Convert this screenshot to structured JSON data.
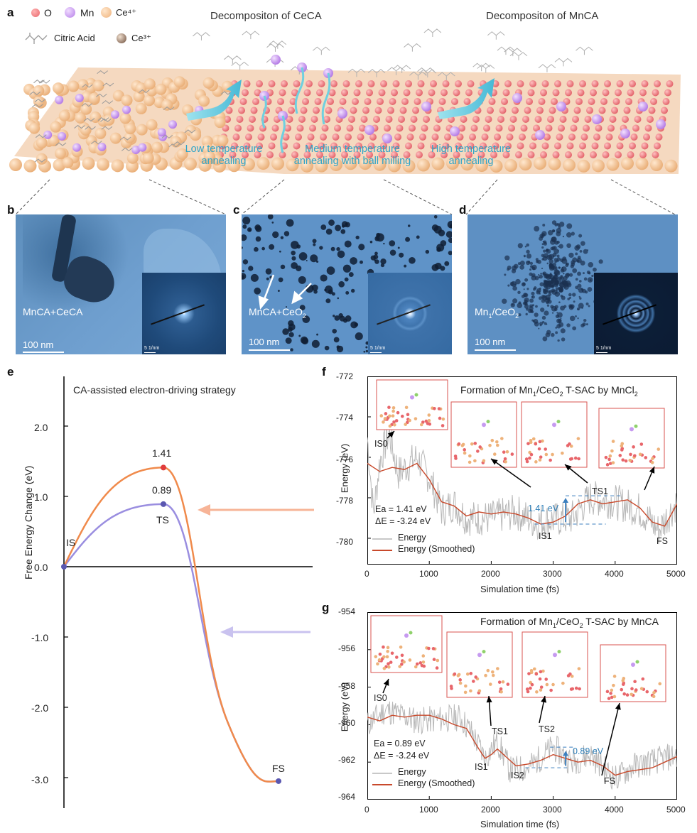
{
  "panel_labels": {
    "a": "a",
    "b": "b",
    "c": "c",
    "d": "d",
    "e": "e",
    "f": "f",
    "g": "g"
  },
  "panel_a": {
    "legend": [
      {
        "label": "O",
        "color": "#e8666b"
      },
      {
        "label": "Mn",
        "color": "#c69af0"
      },
      {
        "label": "Ce⁴⁺",
        "color": "#f2c08f"
      },
      {
        "label": "Citric Acid",
        "color": "#aaaaaa"
      },
      {
        "label": "Ce³⁺",
        "color": "#7a5c48"
      }
    ],
    "stage_titles": [
      "Decompositon of CeCA",
      "Decompositon of MnCA"
    ],
    "steps": [
      {
        "line1": "Low temperature",
        "line2": "annealing"
      },
      {
        "line1": "Medium temperature",
        "line2": "annealing with ball milling"
      },
      {
        "line1": "High temperature",
        "line2": "annealing"
      }
    ],
    "colors": {
      "arrow": "#6fd0e0",
      "step_text": "#2fa4c8"
    }
  },
  "panel_b": {
    "label": "MnCA+CeCA",
    "scale": "100 nm",
    "inset_scale": "5 1/nm"
  },
  "panel_c": {
    "label_main": "MnCA+CeO",
    "label_sub": "2",
    "scale": "100 nm",
    "inset_scale": "5 1/nm"
  },
  "panel_d": {
    "label_a": "Mn",
    "label_a_sub": "1",
    "label_b": "/CeO",
    "label_b_sub": "2",
    "scale": "100 nm",
    "inset_scale": "5 1/nm"
  },
  "panel_e_text": {
    "title": "CA-assisted electron-driving strategy",
    "ylabel": "Free Energy Change (eV)",
    "yticks": [
      "2.0",
      "1.0",
      "0.0",
      "-1.0",
      "-2.0",
      "-3.0"
    ],
    "points": {
      "IS": "IS",
      "TS": "TS",
      "FS": "FS",
      "v1": "1.41",
      "v2": "0.89"
    }
  },
  "panel_f_text": {
    "title_pre": "Formation of Mn",
    "title_sub1": "1",
    "title_mid": "/CeO",
    "title_sub2": "2",
    "title_post": " T-SAC by MnCl",
    "title_sub3": "2",
    "ylabel": "Energy (eV)",
    "xlabel": "Simulation time (fs)",
    "yticks": [
      "-772",
      "-774",
      "-776",
      "-778",
      "-780"
    ],
    "xticks": [
      "0",
      "1000",
      "2000",
      "3000",
      "4000",
      "5000"
    ],
    "ea": "Ea = 1.41 eV",
    "de": "ΔE = -3.24 eV",
    "barrier": "1.41 eV",
    "states": {
      "IS0": "IS0",
      "IS1": "IS1",
      "TS1": "TS1",
      "FS": "FS"
    },
    "legend": [
      "Energy",
      "Energy (Smoothed)"
    ]
  },
  "panel_g_text": {
    "title_pre": "Formation of Mn",
    "title_sub1": "1",
    "title_mid": "/CeO",
    "title_sub2": "2",
    "title_post": " T-SAC by MnCA",
    "ylabel": "Energy (eV)",
    "xlabel": "Simulation time (fs)",
    "yticks": [
      "-954",
      "-956",
      "-958",
      "-960",
      "-962",
      "-964"
    ],
    "xticks": [
      "0",
      "1000",
      "2000",
      "3000",
      "4000",
      "5000"
    ],
    "ea": "Ea = 0.89 eV",
    "de": "ΔE = -3.24 eV",
    "barrier": "0.89 eV",
    "states": {
      "IS0": "IS0",
      "IS1": "IS1",
      "IS2": "IS2",
      "TS1": "TS1",
      "TS2": "TS2",
      "FS": "FS"
    },
    "legend": [
      "Energy",
      "Energy (Smoothed)"
    ]
  },
  "chart_data": [
    {
      "type": "line",
      "ylabel": "Free Energy Change (eV)",
      "ylim": [
        -3.4,
        2.6
      ],
      "series": [
        {
          "points": [
            {
              "state": "IS",
              "value": 0.0
            },
            {
              "state": "TS",
              "value": 1.41
            },
            {
              "state": "FS",
              "value": -3.05
            }
          ],
          "color": "#f08a4b"
        },
        {
          "points": [
            {
              "state": "IS",
              "value": 0.0
            },
            {
              "state": "TS",
              "value": 0.89
            },
            {
              "state": "FS",
              "value": -3.05
            }
          ],
          "color": "#9a8ee0"
        }
      ]
    },
    {
      "type": "line",
      "xlabel": "Simulation time (fs)",
      "ylabel": "Energy (eV)",
      "xlim": [
        0,
        5000
      ],
      "ylim": [
        -781.3,
        -772
      ],
      "smoothed": {
        "name": "Energy (Smoothed)",
        "color": "#c8492b",
        "x": [
          0,
          200,
          400,
          600,
          800,
          1000,
          1200,
          1400,
          1600,
          1800,
          2000,
          2200,
          2400,
          2600,
          2800,
          3000,
          3200,
          3400,
          3600,
          3800,
          4000,
          4200,
          4400,
          4600,
          4800,
          5000
        ],
        "y": [
          -776.3,
          -776.7,
          -776.5,
          -776.6,
          -776.3,
          -777.1,
          -778.2,
          -778.4,
          -778.9,
          -778.7,
          -778.8,
          -778.7,
          -778.8,
          -779.0,
          -779.3,
          -779.2,
          -778.9,
          -778.3,
          -778.1,
          -778.3,
          -778.2,
          -778.1,
          -778.5,
          -779.2,
          -779.4,
          -778.3
        ]
      },
      "raw": {
        "name": "Energy",
        "color": "#b8b8b8",
        "x0": 0,
        "x1": 5000,
        "seed": 7,
        "anchors": [
          [
            0,
            -775.0
          ],
          [
            100,
            -778.8
          ],
          [
            200,
            -776.2
          ],
          [
            350,
            -774.8
          ],
          [
            500,
            -776.8
          ],
          [
            800,
            -776.0
          ],
          [
            1000,
            -777.0
          ],
          [
            1200,
            -778.6
          ],
          [
            1400,
            -778.3
          ],
          [
            1600,
            -779.0
          ],
          [
            2000,
            -779.0
          ],
          [
            2400,
            -778.7
          ],
          [
            2700,
            -779.2
          ],
          [
            3000,
            -779.1
          ],
          [
            3300,
            -779.0
          ],
          [
            3600,
            -778.0
          ],
          [
            4000,
            -778.2
          ],
          [
            4400,
            -778.6
          ],
          [
            4700,
            -779.6
          ],
          [
            5000,
            -778.2
          ]
        ],
        "amp": 0.9
      }
    },
    {
      "type": "line",
      "xlabel": "Simulation time (fs)",
      "ylabel": "Energy (eV)",
      "xlim": [
        0,
        5000
      ],
      "ylim": [
        -964,
        -954
      ],
      "smoothed": {
        "name": "Energy (Smoothed)",
        "color": "#c8492b",
        "x": [
          0,
          200,
          400,
          600,
          800,
          1000,
          1200,
          1400,
          1600,
          1800,
          1900,
          2000,
          2100,
          2200,
          2400,
          2600,
          2800,
          3000,
          3200,
          3400,
          3600,
          3800,
          4000,
          4200,
          4400,
          4600,
          4800,
          5000
        ],
        "y": [
          -959.6,
          -959.8,
          -959.5,
          -959.6,
          -959.5,
          -959.5,
          -959.7,
          -960.0,
          -960.2,
          -961.3,
          -961.8,
          -961.6,
          -961.3,
          -961.6,
          -962.2,
          -962.1,
          -961.9,
          -961.6,
          -961.8,
          -962.0,
          -961.9,
          -962.2,
          -962.7,
          -962.5,
          -962.4,
          -962.3,
          -962.0,
          -961.7
        ]
      },
      "raw": {
        "name": "Energy",
        "color": "#b8b8b8",
        "x0": 0,
        "x1": 5000,
        "seed": 11,
        "anchors": [
          [
            0,
            -960.0
          ],
          [
            300,
            -959.2
          ],
          [
            800,
            -959.8
          ],
          [
            1200,
            -959.7
          ],
          [
            1500,
            -959.6
          ],
          [
            1700,
            -960.5
          ],
          [
            1900,
            -961.8
          ],
          [
            2100,
            -960.9
          ],
          [
            2300,
            -962.4
          ],
          [
            2600,
            -962.3
          ],
          [
            3000,
            -961.2
          ],
          [
            3300,
            -962.0
          ],
          [
            3600,
            -961.6
          ],
          [
            4000,
            -962.9
          ],
          [
            4300,
            -962.2
          ],
          [
            4700,
            -961.9
          ],
          [
            5000,
            -961.6
          ]
        ],
        "amp": 0.75
      }
    }
  ]
}
